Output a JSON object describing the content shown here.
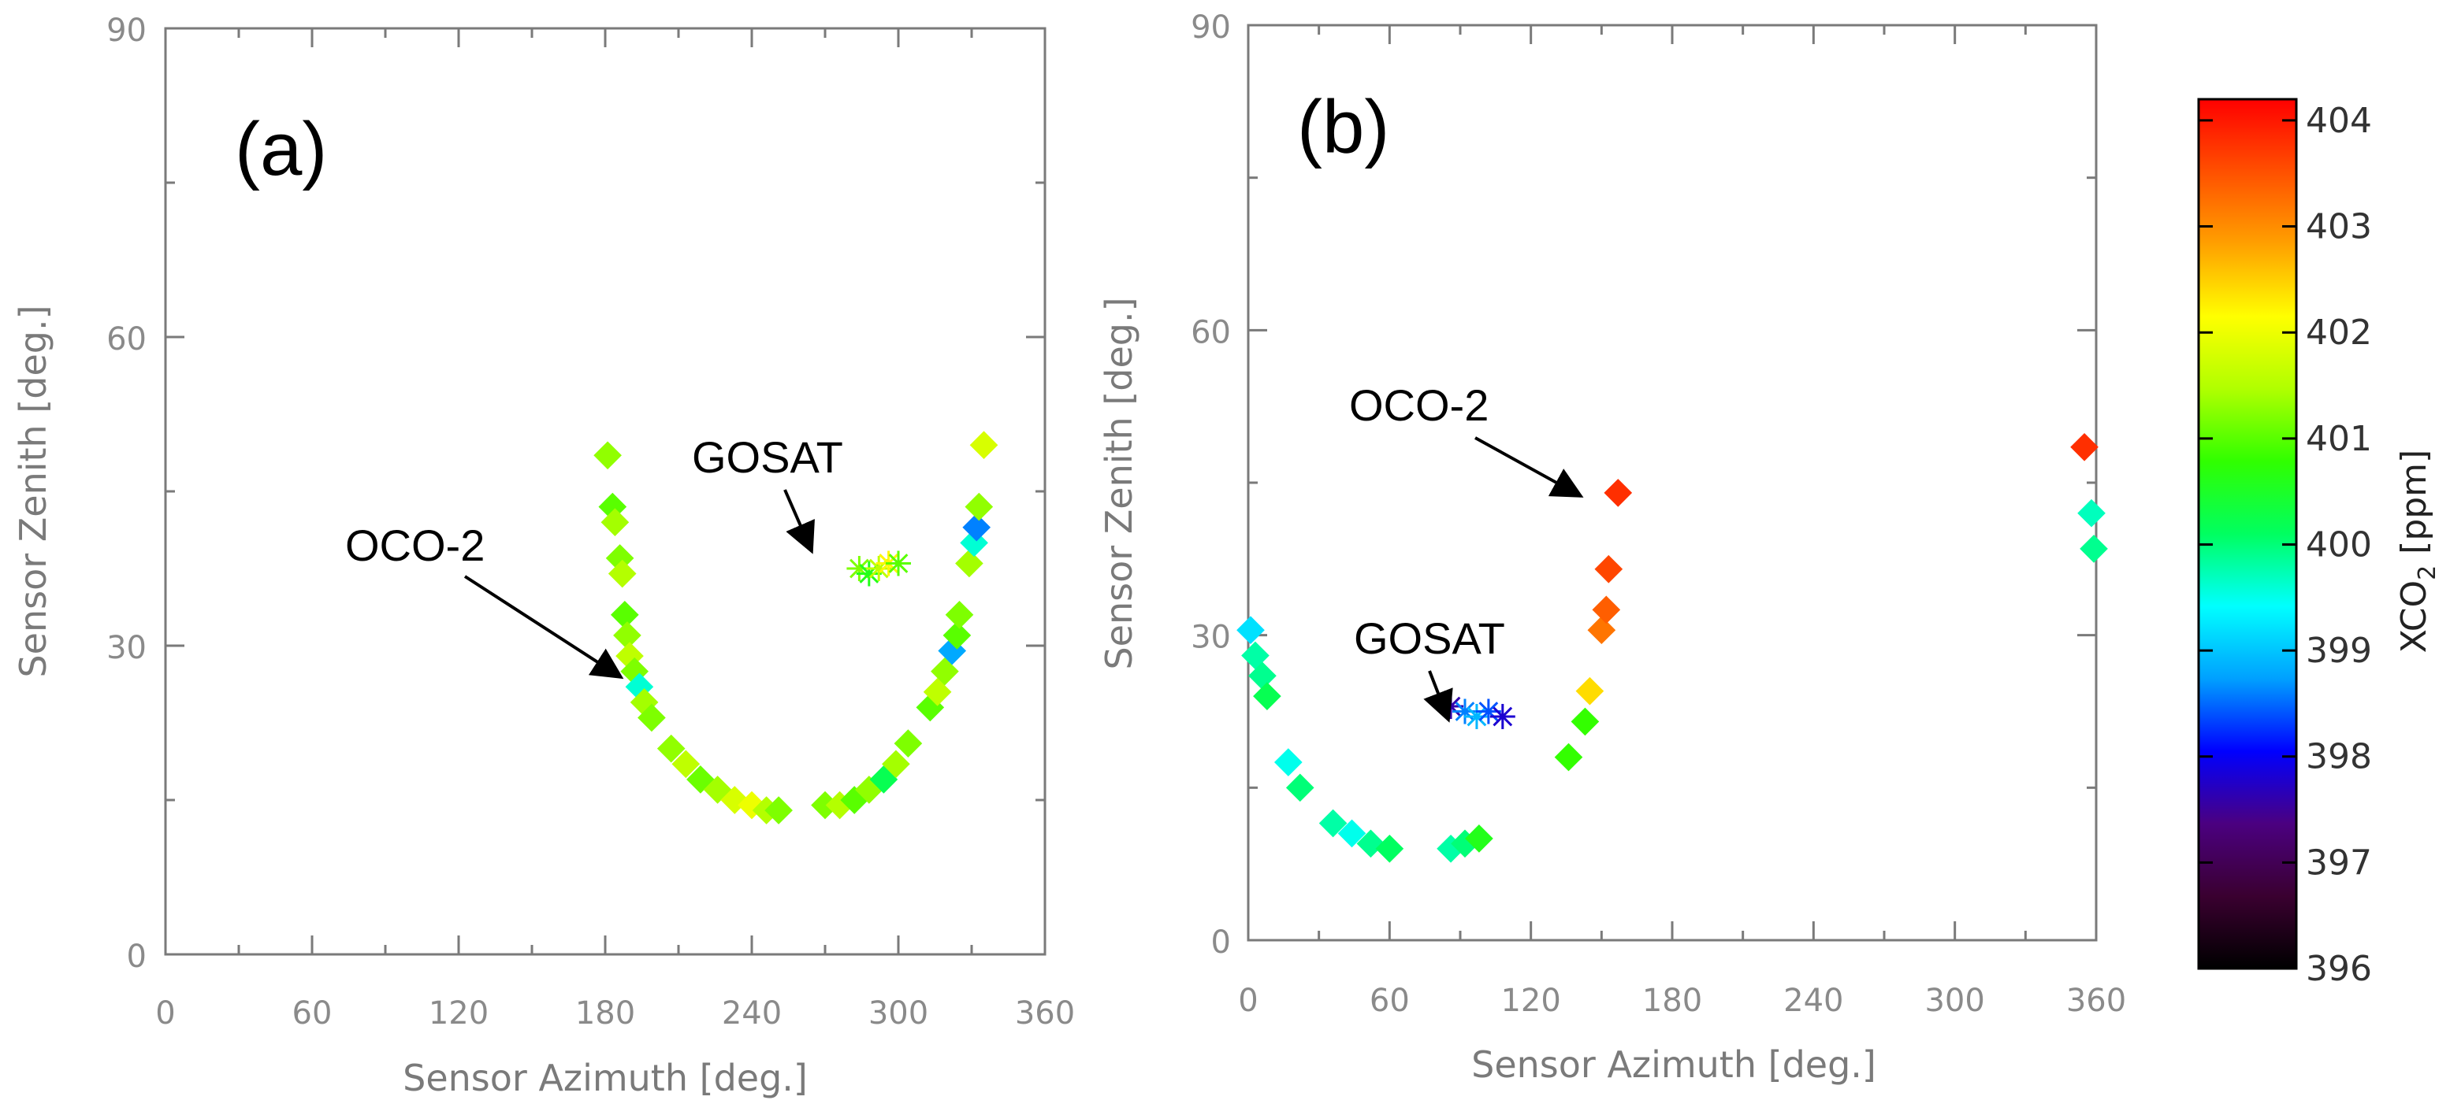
{
  "chart_data": [
    {
      "type": "scatter",
      "panel_label": "(a)",
      "xlabel_text": "Sensor Azimuth ",
      "xlabel_unit": "[deg.]",
      "ylabel_text": "Sensor Zenith ",
      "ylabel_unit": "[deg.]",
      "xlim": [
        0,
        360
      ],
      "ylim": [
        0,
        90
      ],
      "xticks": [
        "0",
        "60",
        "120",
        "180",
        "240",
        "300",
        "360"
      ],
      "yticks": [
        "0",
        "30",
        "60",
        "90"
      ],
      "annotations": [
        {
          "text": "GOSAT",
          "target": [
            286,
            37
          ]
        },
        {
          "text": "OCO-2",
          "target": [
            182,
            30
          ]
        }
      ],
      "series": [
        {
          "name": "OCO-2",
          "marker": "diamond",
          "points": [
            {
              "x": 181,
              "y": 48.5,
              "v": 401.3
            },
            {
              "x": 183,
              "y": 43.5,
              "v": 401.0
            },
            {
              "x": 184,
              "y": 42.0,
              "v": 401.4
            },
            {
              "x": 186,
              "y": 38.5,
              "v": 401.2
            },
            {
              "x": 187,
              "y": 37.0,
              "v": 401.5
            },
            {
              "x": 188,
              "y": 33.0,
              "v": 401.0
            },
            {
              "x": 189,
              "y": 31.0,
              "v": 401.3
            },
            {
              "x": 190,
              "y": 29.0,
              "v": 401.6
            },
            {
              "x": 192,
              "y": 27.5,
              "v": 401.2
            },
            {
              "x": 194,
              "y": 26.0,
              "v": 399.6
            },
            {
              "x": 196,
              "y": 24.5,
              "v": 401.4
            },
            {
              "x": 199,
              "y": 23.0,
              "v": 401.2
            },
            {
              "x": 207,
              "y": 20.0,
              "v": 401.3
            },
            {
              "x": 213,
              "y": 18.5,
              "v": 401.6
            },
            {
              "x": 219,
              "y": 17.0,
              "v": 401.1
            },
            {
              "x": 226,
              "y": 16.0,
              "v": 401.4
            },
            {
              "x": 233,
              "y": 15.0,
              "v": 401.8
            },
            {
              "x": 240,
              "y": 14.5,
              "v": 402.0
            },
            {
              "x": 246,
              "y": 14.0,
              "v": 401.5
            },
            {
              "x": 251,
              "y": 14.0,
              "v": 401.2
            },
            {
              "x": 270,
              "y": 14.5,
              "v": 401.2
            },
            {
              "x": 276,
              "y": 14.5,
              "v": 401.5
            },
            {
              "x": 282,
              "y": 15.0,
              "v": 401.0
            },
            {
              "x": 288,
              "y": 16.0,
              "v": 401.3
            },
            {
              "x": 294,
              "y": 17.0,
              "v": 400.2
            },
            {
              "x": 299,
              "y": 18.5,
              "v": 401.4
            },
            {
              "x": 304,
              "y": 20.5,
              "v": 401.2
            },
            {
              "x": 313,
              "y": 24.0,
              "v": 401.0
            },
            {
              "x": 316,
              "y": 25.5,
              "v": 401.6
            },
            {
              "x": 319,
              "y": 27.5,
              "v": 401.3
            },
            {
              "x": 322,
              "y": 29.5,
              "v": 398.8
            },
            {
              "x": 324,
              "y": 31.0,
              "v": 401.0
            },
            {
              "x": 325,
              "y": 33.0,
              "v": 401.2
            },
            {
              "x": 329,
              "y": 38.0,
              "v": 401.4
            },
            {
              "x": 331,
              "y": 40.0,
              "v": 399.6
            },
            {
              "x": 332,
              "y": 41.5,
              "v": 398.6
            },
            {
              "x": 333,
              "y": 43.5,
              "v": 401.3
            },
            {
              "x": 335,
              "y": 49.5,
              "v": 401.8
            }
          ]
        },
        {
          "name": "GOSAT",
          "marker": "asterisk",
          "points": [
            {
              "x": 284,
              "y": 37.5,
              "v": 401.2
            },
            {
              "x": 288,
              "y": 37.0,
              "v": 400.6
            },
            {
              "x": 292,
              "y": 37.5,
              "v": 401.6
            },
            {
              "x": 296,
              "y": 38.0,
              "v": 402.2
            },
            {
              "x": 300,
              "y": 38.0,
              "v": 401.0
            }
          ]
        }
      ]
    },
    {
      "type": "scatter",
      "panel_label": "(b)",
      "xlabel_text": "Sensor Azimuth ",
      "xlabel_unit": "[deg.]",
      "ylabel_text": "Sensor Zenith ",
      "ylabel_unit": "[deg.]",
      "xlim": [
        0,
        360
      ],
      "ylim": [
        0,
        90
      ],
      "xticks": [
        "0",
        "60",
        "120",
        "180",
        "240",
        "300",
        "360"
      ],
      "yticks": [
        "0",
        "30",
        "60",
        "90"
      ],
      "annotations": [
        {
          "text": "OCO-2",
          "target": [
            150,
            44
          ]
        },
        {
          "text": "GOSAT",
          "target": [
            83,
            25
          ]
        }
      ],
      "series": [
        {
          "name": "OCO-2",
          "marker": "diamond",
          "points": [
            {
              "x": 1,
              "y": 30.5,
              "v": 399.2
            },
            {
              "x": 3,
              "y": 28.0,
              "v": 399.8
            },
            {
              "x": 6,
              "y": 26.0,
              "v": 399.9
            },
            {
              "x": 8,
              "y": 24.0,
              "v": 400.2
            },
            {
              "x": 17,
              "y": 17.5,
              "v": 399.5
            },
            {
              "x": 22,
              "y": 15.0,
              "v": 400.0
            },
            {
              "x": 36,
              "y": 11.5,
              "v": 399.8
            },
            {
              "x": 44,
              "y": 10.5,
              "v": 399.5
            },
            {
              "x": 52,
              "y": 9.5,
              "v": 399.9
            },
            {
              "x": 60,
              "y": 9.0,
              "v": 400.1
            },
            {
              "x": 86,
              "y": 9.0,
              "v": 399.8
            },
            {
              "x": 92,
              "y": 9.5,
              "v": 400.0
            },
            {
              "x": 98,
              "y": 10.0,
              "v": 400.6
            },
            {
              "x": 136,
              "y": 18.0,
              "v": 400.8
            },
            {
              "x": 143,
              "y": 21.5,
              "v": 400.8
            },
            {
              "x": 145,
              "y": 24.5,
              "v": 402.4
            },
            {
              "x": 150,
              "y": 30.5,
              "v": 403.2
            },
            {
              "x": 152,
              "y": 32.5,
              "v": 403.4
            },
            {
              "x": 153,
              "y": 36.5,
              "v": 403.6
            },
            {
              "x": 157,
              "y": 44.0,
              "v": 403.8
            },
            {
              "x": 355,
              "y": 48.5,
              "v": 403.8
            },
            {
              "x": 358,
              "y": 42.0,
              "v": 399.7
            },
            {
              "x": 359,
              "y": 38.5,
              "v": 399.9
            }
          ]
        },
        {
          "name": "GOSAT",
          "marker": "asterisk",
          "points": [
            {
              "x": 86,
              "y": 23.0,
              "v": 397.6
            },
            {
              "x": 92,
              "y": 22.5,
              "v": 398.6
            },
            {
              "x": 97,
              "y": 22.0,
              "v": 398.9
            },
            {
              "x": 102,
              "y": 22.5,
              "v": 398.4
            },
            {
              "x": 108,
              "y": 22.0,
              "v": 397.8
            }
          ]
        }
      ]
    }
  ],
  "colorbar": {
    "title_main": "XCO",
    "title_sub": "2",
    "title_unit": " [ppm]",
    "range": [
      396,
      404.2
    ],
    "ticks": [
      "396",
      "397",
      "398",
      "399",
      "400",
      "401",
      "402",
      "403",
      "404"
    ],
    "colors": [
      "#000000",
      "#3a0030",
      "#4b0080",
      "#0000ff",
      "#00a0ff",
      "#00ffff",
      "#00ff60",
      "#30ff00",
      "#b0ff00",
      "#ffff00",
      "#ffa000",
      "#ff5000",
      "#ff0000"
    ]
  }
}
